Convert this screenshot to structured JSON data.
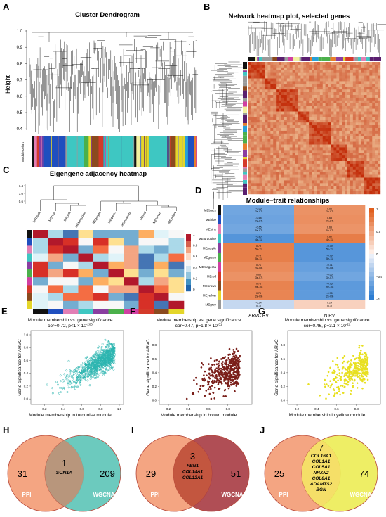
{
  "panels": {
    "A": {
      "letter": "A",
      "title": "Cluster Dendrogram",
      "ylabel": "Height",
      "ticks": [
        "1.0",
        "0.9",
        "0.8",
        "0.7",
        "0.6",
        "0.5",
        "0.4"
      ],
      "colorbar_label": "Module colors"
    },
    "B": {
      "letter": "B",
      "title": "Network heatmap plot, selected genes"
    },
    "C": {
      "letter": "C",
      "title": "Eigengene adjacency heatmap",
      "dendro_ticks": [
        "1.4",
        "1.0",
        "0.6"
      ],
      "modules": [
        "MEblack",
        "MEblue",
        "MEpink",
        "MEturquoise",
        "MEpurple",
        "MEgreen",
        "MEmagenta",
        "MEred",
        "MEbrown",
        "MEyellow"
      ],
      "scale": [
        "1",
        "0.8",
        "0.6",
        "0.4",
        "0.2",
        "0"
      ]
    },
    "D": {
      "letter": "D",
      "title": "Module−trait relationships",
      "rows": [
        "MEblack",
        "MEblue",
        "MEpink",
        "MEturquoise",
        "MEpurple",
        "MEgreen",
        "MEmagenta",
        "MEred",
        "MEbrown",
        "MEyellow",
        "MEgrey"
      ],
      "cols": [
        "ARVC RV",
        "N.RV"
      ],
      "cells": [
        [
          "-0.66\n(3e-07)",
          "0.66\n(3e-07)"
        ],
        [
          "-0.68\n(2e-07)",
          "0.68\n(2e-07)"
        ],
        [
          "-0.65\n(5e-07)",
          "0.65\n(5e-07)"
        ],
        [
          "-0.80\n(4e-11)",
          "0.80\n(4e-11)"
        ],
        [
          "0.79\n(5e-11)",
          "-0.79\n(5e-11)"
        ],
        [
          "0.79\n(5e-11)",
          "-0.79\n(5e-11)"
        ],
        [
          "0.71\n(3e-08)",
          "-0.71\n(3e-08)"
        ],
        [
          "0.66\n(3e-07)",
          "-0.66\n(3e-07)"
        ],
        [
          "0.76\n(9e-10)",
          "-0.76\n(9e-10)"
        ],
        [
          "0.75\n(2e-09)",
          "-0.75\n(2e-09)"
        ],
        [
          "-0.24\n(0.1)",
          "0.24\n(0.1)"
        ]
      ],
      "values": [
        [
          -0.66,
          0.66
        ],
        [
          -0.68,
          0.68
        ],
        [
          -0.65,
          0.65
        ],
        [
          -0.8,
          0.8
        ],
        [
          0.79,
          -0.79
        ],
        [
          0.79,
          -0.79
        ],
        [
          0.71,
          -0.71
        ],
        [
          0.66,
          -0.66
        ],
        [
          0.76,
          -0.76
        ],
        [
          0.75,
          -0.75
        ],
        [
          -0.24,
          0.24
        ]
      ],
      "scale": [
        "1",
        "0.5",
        "0",
        "−0.5",
        "−1"
      ]
    },
    "E": {
      "letter": "E",
      "title": "Module membership vs. gene significance",
      "stat": "cor=0.72, p<1 × 10",
      "stat_exp": "-200",
      "xlabel": "Module membership in turquoise module",
      "ylabel": "Gene significance for ARVC",
      "color": "#2bb5b0",
      "xticks": [
        "0.2",
        "0.4",
        "0.6",
        "0.8",
        "1.0"
      ],
      "yticks": [
        "0.0",
        "0.2",
        "0.4",
        "0.6",
        "0.8",
        "1.0"
      ]
    },
    "F": {
      "letter": "F",
      "title": "Module membership vs. gene significance",
      "stat": "cor=0.47, p=1.8 × 10",
      "stat_exp": "-31",
      "xlabel": "Module membership in brown module",
      "ylabel": "Gene significance for ARVC",
      "color": "#7a1f1a",
      "xticks": [
        "0.2",
        "0.4",
        "0.6",
        "0.8"
      ],
      "yticks": [
        "0.0",
        "0.2",
        "0.4",
        "0.6",
        "0.8"
      ]
    },
    "G": {
      "letter": "G",
      "title": "Module membership vs. gene significance",
      "stat": "cor=0.46, p=3.1 × 10",
      "stat_exp": "-22",
      "xlabel": "Module membership in yellow module",
      "ylabel": "Gene significance for ARVC",
      "color": "#e8e020",
      "xticks": [
        "0.2",
        "0.4",
        "0.6",
        "0.8"
      ],
      "yticks": [
        "0.0",
        "0.2",
        "0.4",
        "0.6",
        "0.8"
      ]
    },
    "H": {
      "letter": "H",
      "left": "31",
      "mid": "1",
      "right": "209",
      "left_label": "PPI",
      "right_label": "WGCNA",
      "genes": [
        "SCN1A"
      ],
      "right_color": "#58c3b5"
    },
    "I": {
      "letter": "I",
      "left": "29",
      "mid": "3",
      "right": "51",
      "left_label": "PPI",
      "right_label": "WGCNA",
      "genes": [
        "FBN1",
        "COL14A1",
        "COL12A1"
      ],
      "right_color": "#a5353e"
    },
    "J": {
      "letter": "J",
      "left": "25",
      "mid": "7",
      "right": "74",
      "left_label": "PPI",
      "right_label": "WGCNA",
      "genes": [
        "COL16A1",
        "COL1A1",
        "COL5A1",
        "NRXN2",
        "COL8A1",
        "ADAMTS2",
        "BGN"
      ],
      "right_color": "#ecec50"
    }
  },
  "colors": {
    "left_venn": "#f4a582",
    "heat_high": "#c8321e",
    "heat_low": "#fff3c4"
  }
}
